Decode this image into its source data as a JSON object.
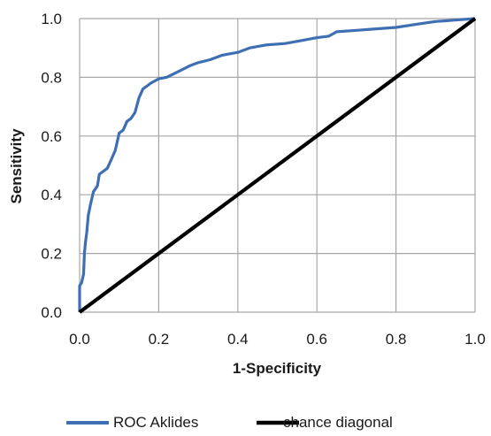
{
  "chart_data": {
    "type": "line",
    "title": "",
    "xlabel": "1-Specificity",
    "ylabel": "Sensitivity",
    "xlim": [
      0,
      1
    ],
    "ylim": [
      0,
      1
    ],
    "grid": true,
    "legend_position": "bottom",
    "x_ticks": [
      "0.0",
      "0.2",
      "0.4",
      "0.6",
      "0.8",
      "1.0"
    ],
    "y_ticks": [
      "0.0",
      "0.2",
      "0.4",
      "0.6",
      "0.8",
      "1.0"
    ],
    "series": [
      {
        "name": "ROC Aklides",
        "color": "#3f6fb3",
        "points": [
          [
            0.0,
            0.0
          ],
          [
            0.0,
            0.09
          ],
          [
            0.005,
            0.1
          ],
          [
            0.01,
            0.13
          ],
          [
            0.012,
            0.2
          ],
          [
            0.015,
            0.24
          ],
          [
            0.018,
            0.27
          ],
          [
            0.022,
            0.33
          ],
          [
            0.028,
            0.37
          ],
          [
            0.035,
            0.41
          ],
          [
            0.045,
            0.43
          ],
          [
            0.05,
            0.47
          ],
          [
            0.06,
            0.48
          ],
          [
            0.07,
            0.49
          ],
          [
            0.08,
            0.52
          ],
          [
            0.09,
            0.55
          ],
          [
            0.095,
            0.58
          ],
          [
            0.1,
            0.61
          ],
          [
            0.11,
            0.62
          ],
          [
            0.12,
            0.65
          ],
          [
            0.13,
            0.66
          ],
          [
            0.14,
            0.68
          ],
          [
            0.15,
            0.73
          ],
          [
            0.16,
            0.76
          ],
          [
            0.18,
            0.78
          ],
          [
            0.2,
            0.795
          ],
          [
            0.22,
            0.8
          ],
          [
            0.25,
            0.82
          ],
          [
            0.28,
            0.84
          ],
          [
            0.3,
            0.85
          ],
          [
            0.33,
            0.86
          ],
          [
            0.36,
            0.875
          ],
          [
            0.4,
            0.885
          ],
          [
            0.43,
            0.9
          ],
          [
            0.47,
            0.91
          ],
          [
            0.52,
            0.915
          ],
          [
            0.56,
            0.925
          ],
          [
            0.6,
            0.935
          ],
          [
            0.63,
            0.94
          ],
          [
            0.65,
            0.955
          ],
          [
            0.7,
            0.96
          ],
          [
            0.75,
            0.965
          ],
          [
            0.8,
            0.97
          ],
          [
            0.85,
            0.98
          ],
          [
            0.9,
            0.99
          ],
          [
            0.95,
            0.995
          ],
          [
            1.0,
            1.0
          ]
        ]
      },
      {
        "name": "chance diagonal",
        "color": "#000000",
        "points": [
          [
            0.0,
            0.0
          ],
          [
            1.0,
            1.0
          ]
        ]
      }
    ]
  }
}
